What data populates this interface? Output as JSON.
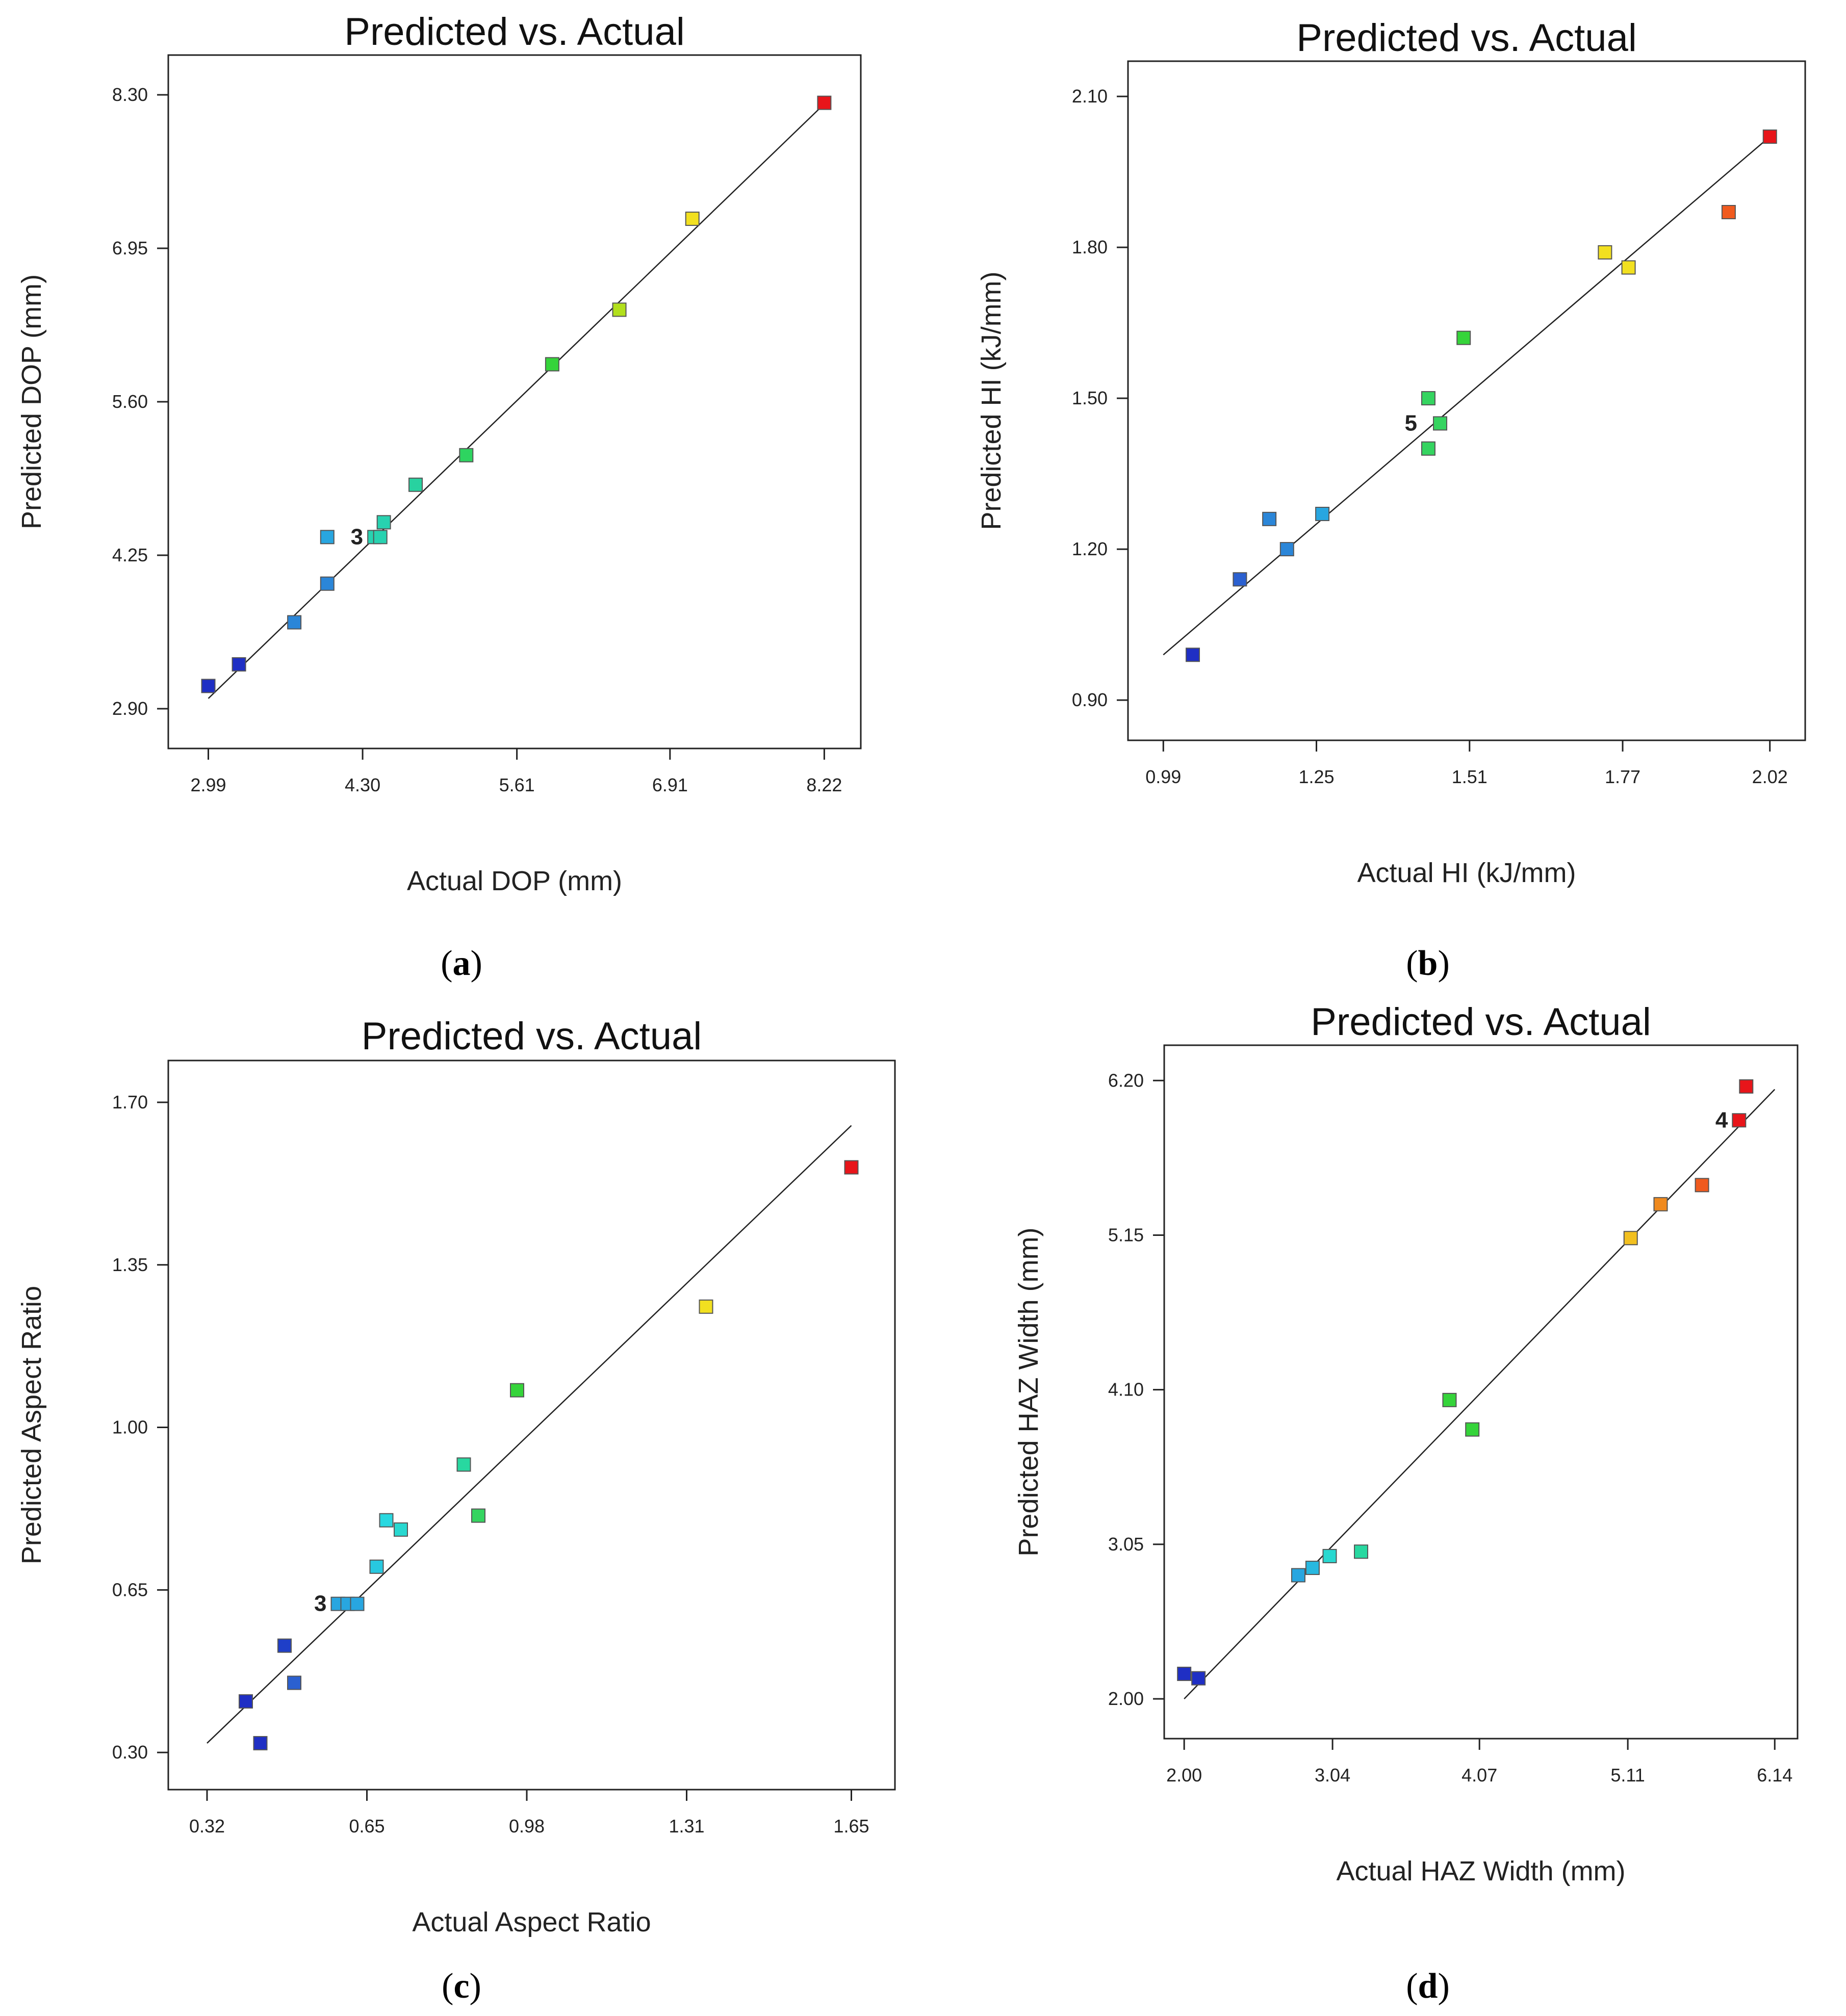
{
  "chart_data": [
    {
      "id": "a",
      "type": "scatter",
      "title": "Predicted vs. Actual",
      "xlabel": "Actual DOP (mm)",
      "ylabel": "Predicted DOP (mm)",
      "caption_letter": "a",
      "xlim": [
        2.65,
        8.53
      ],
      "ylim": [
        2.55,
        8.65
      ],
      "xticks": [
        2.99,
        4.3,
        5.61,
        6.91,
        8.22
      ],
      "xtick_labels": [
        "2.99",
        "4.30",
        "5.61",
        "6.91",
        "8.22"
      ],
      "yticks": [
        2.9,
        4.25,
        5.6,
        6.95,
        8.3
      ],
      "ytick_labels": [
        "2.90",
        "4.25",
        "5.60",
        "6.95",
        "8.30"
      ],
      "fit_line": [
        [
          2.99,
          2.99
        ],
        [
          8.22,
          8.22
        ]
      ],
      "points": [
        {
          "x": 2.99,
          "y": 3.1,
          "color": "#1f2fc4"
        },
        {
          "x": 3.25,
          "y": 3.29,
          "color": "#1f2fc4"
        },
        {
          "x": 3.72,
          "y": 3.66,
          "color": "#2b86d8"
        },
        {
          "x": 4.0,
          "y": 4.0,
          "color": "#2b86d8"
        },
        {
          "x": 4.0,
          "y": 4.41,
          "color": "#28a6e0"
        },
        {
          "x": 4.4,
          "y": 4.41,
          "color": "#28d2b0"
        },
        {
          "x": 4.45,
          "y": 4.41,
          "color": "#28d2b0"
        },
        {
          "x": 4.48,
          "y": 4.54,
          "color": "#28d2b0"
        },
        {
          "x": 4.75,
          "y": 4.87,
          "color": "#28d2a0"
        },
        {
          "x": 5.18,
          "y": 5.13,
          "color": "#2ed460"
        },
        {
          "x": 5.91,
          "y": 5.93,
          "color": "#35d43a"
        },
        {
          "x": 6.48,
          "y": 6.41,
          "color": "#b2e01c"
        },
        {
          "x": 7.1,
          "y": 7.21,
          "color": "#f2e020"
        },
        {
          "x": 8.22,
          "y": 8.23,
          "color": "#e8151a"
        }
      ],
      "annotations": [
        {
          "text": "3",
          "x": 4.4,
          "y": 4.41
        }
      ]
    },
    {
      "id": "b",
      "type": "scatter",
      "title": "Predicted vs. Actual",
      "xlabel": "Actual HI (kJ/mm)",
      "ylabel": "Predicted HI (kJ/mm)",
      "caption_letter": "b",
      "xlim": [
        0.93,
        2.08
      ],
      "ylim": [
        0.82,
        2.17
      ],
      "xticks": [
        0.99,
        1.25,
        1.51,
        1.77,
        2.02
      ],
      "xtick_labels": [
        "0.99",
        "1.25",
        "1.51",
        "1.77",
        "2.02"
      ],
      "yticks": [
        0.9,
        1.2,
        1.5,
        1.8,
        2.1
      ],
      "ytick_labels": [
        "0.90",
        "1.20",
        "1.50",
        "1.80",
        "2.10"
      ],
      "fit_line": [
        [
          0.99,
          0.99
        ],
        [
          2.02,
          2.02
        ]
      ],
      "points": [
        {
          "x": 1.04,
          "y": 0.99,
          "color": "#1f2fc4"
        },
        {
          "x": 1.12,
          "y": 1.14,
          "color": "#2b60d0"
        },
        {
          "x": 1.17,
          "y": 1.26,
          "color": "#2b86d8"
        },
        {
          "x": 1.2,
          "y": 1.2,
          "color": "#2b86d8"
        },
        {
          "x": 1.26,
          "y": 1.27,
          "color": "#28a6e0"
        },
        {
          "x": 1.44,
          "y": 1.5,
          "color": "#35d460"
        },
        {
          "x": 1.44,
          "y": 1.4,
          "color": "#35d460"
        },
        {
          "x": 1.46,
          "y": 1.45,
          "color": "#35d460"
        },
        {
          "x": 1.5,
          "y": 1.62,
          "color": "#35d43a"
        },
        {
          "x": 1.74,
          "y": 1.79,
          "color": "#f2e020"
        },
        {
          "x": 1.78,
          "y": 1.76,
          "color": "#f2e020"
        },
        {
          "x": 1.95,
          "y": 1.87,
          "color": "#f05a1e"
        },
        {
          "x": 2.02,
          "y": 2.02,
          "color": "#e8151a"
        }
      ],
      "annotations": [
        {
          "text": "5",
          "x": 1.44,
          "y": 1.45
        }
      ]
    },
    {
      "id": "c",
      "type": "scatter",
      "title": "Predicted vs. Actual",
      "xlabel": "Actual Aspect Ratio",
      "ylabel": "Predicted Aspect Ratio",
      "caption_letter": "c",
      "xlim": [
        0.24,
        1.74
      ],
      "ylim": [
        0.22,
        1.79
      ],
      "xticks": [
        0.32,
        0.65,
        0.98,
        1.31,
        1.65
      ],
      "xtick_labels": [
        "0.32",
        "0.65",
        "0.98",
        "1.31",
        "1.65"
      ],
      "yticks": [
        0.3,
        0.65,
        1.0,
        1.35,
        1.7
      ],
      "ytick_labels": [
        "0.30",
        "0.65",
        "1.00",
        "1.35",
        "1.70"
      ],
      "fit_line": [
        [
          0.32,
          0.32
        ],
        [
          1.65,
          1.65
        ]
      ],
      "points": [
        {
          "x": 0.4,
          "y": 0.41,
          "color": "#1f2fc4"
        },
        {
          "x": 0.43,
          "y": 0.32,
          "color": "#1f2fc4"
        },
        {
          "x": 0.48,
          "y": 0.53,
          "color": "#1f3fc8"
        },
        {
          "x": 0.5,
          "y": 0.45,
          "color": "#2b60d0"
        },
        {
          "x": 0.59,
          "y": 0.62,
          "color": "#28a6e0"
        },
        {
          "x": 0.61,
          "y": 0.62,
          "color": "#28a6e0"
        },
        {
          "x": 0.63,
          "y": 0.62,
          "color": "#28a6e0"
        },
        {
          "x": 0.67,
          "y": 0.7,
          "color": "#28c8e0"
        },
        {
          "x": 0.69,
          "y": 0.8,
          "color": "#28d8e0"
        },
        {
          "x": 0.72,
          "y": 0.78,
          "color": "#28d8d0"
        },
        {
          "x": 0.85,
          "y": 0.92,
          "color": "#28d8a0"
        },
        {
          "x": 0.88,
          "y": 0.81,
          "color": "#35d460"
        },
        {
          "x": 0.96,
          "y": 1.08,
          "color": "#35d43a"
        },
        {
          "x": 1.35,
          "y": 1.26,
          "color": "#f2e020"
        },
        {
          "x": 1.65,
          "y": 1.56,
          "color": "#e8151a"
        }
      ],
      "annotations": [
        {
          "text": "3",
          "x": 0.59,
          "y": 0.62
        }
      ]
    },
    {
      "id": "d",
      "type": "scatter",
      "title": "Predicted vs. Actual",
      "xlabel": "Actual HAZ Width (mm)",
      "ylabel": "Predicted HAZ Width (mm)",
      "caption_letter": "d",
      "xlim": [
        1.86,
        6.3
      ],
      "ylim": [
        1.73,
        6.44
      ],
      "xticks": [
        2.0,
        3.04,
        4.07,
        5.11,
        6.14
      ],
      "xtick_labels": [
        "2.00",
        "3.04",
        "4.07",
        "5.11",
        "6.14"
      ],
      "yticks": [
        2.0,
        3.05,
        4.1,
        5.15,
        6.2
      ],
      "ytick_labels": [
        "2.00",
        "3.05",
        "4.10",
        "5.15",
        "6.20"
      ],
      "fit_line": [
        [
          2.0,
          2.0
        ],
        [
          6.14,
          6.14
        ]
      ],
      "points": [
        {
          "x": 2.0,
          "y": 2.17,
          "color": "#1f2fc4"
        },
        {
          "x": 2.1,
          "y": 2.14,
          "color": "#1f2fc4"
        },
        {
          "x": 2.8,
          "y": 2.84,
          "color": "#28a6e0"
        },
        {
          "x": 2.9,
          "y": 2.89,
          "color": "#28b8e0"
        },
        {
          "x": 3.02,
          "y": 2.97,
          "color": "#28d8d0"
        },
        {
          "x": 3.24,
          "y": 3.0,
          "color": "#28d8a0"
        },
        {
          "x": 3.86,
          "y": 4.03,
          "color": "#35d43a"
        },
        {
          "x": 4.02,
          "y": 3.83,
          "color": "#35d43a"
        },
        {
          "x": 5.13,
          "y": 5.13,
          "color": "#f2c020"
        },
        {
          "x": 5.34,
          "y": 5.36,
          "color": "#f08a1e"
        },
        {
          "x": 5.63,
          "y": 5.49,
          "color": "#f05a1e"
        },
        {
          "x": 5.89,
          "y": 5.93,
          "color": "#e8151a"
        },
        {
          "x": 5.94,
          "y": 6.16,
          "color": "#e8151a"
        }
      ],
      "annotations": [
        {
          "text": "4",
          "x": 5.89,
          "y": 5.93
        }
      ]
    }
  ]
}
